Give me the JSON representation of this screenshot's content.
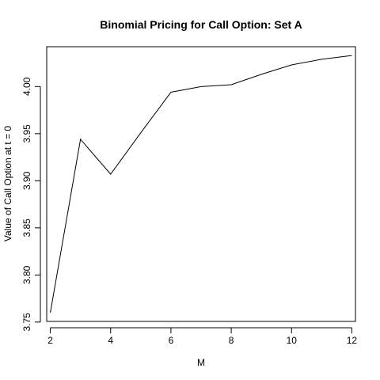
{
  "chart_data": {
    "type": "line",
    "title": "Binomial Pricing for Call Option: Set A",
    "xlabel": "M",
    "ylabel": "Value of Call Option at t = 0",
    "x": [
      2,
      3,
      4,
      5,
      6,
      7,
      8,
      9,
      10,
      11,
      12
    ],
    "y": [
      3.76,
      3.944,
      3.907,
      3.951,
      3.994,
      4.0,
      4.002,
      4.013,
      4.023,
      4.029,
      4.033
    ],
    "xlim": [
      1.88,
      12.12
    ],
    "ylim": [
      3.7507,
      4.0423
    ],
    "xticks": [
      "2",
      "4",
      "6",
      "8",
      "10",
      "12"
    ],
    "yticks": [
      "3.75",
      "3.80",
      "3.85",
      "3.90",
      "3.95",
      "4.00"
    ],
    "grid": false,
    "line_color": "#000000"
  }
}
